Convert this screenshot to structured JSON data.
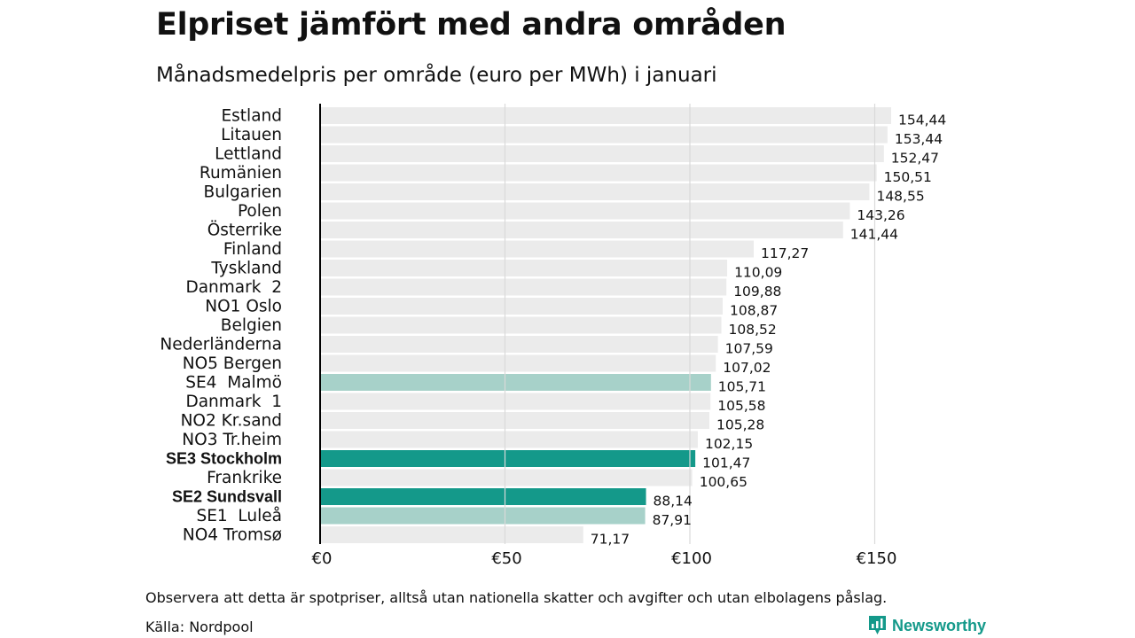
{
  "title": "Elpriset jämfört med andra områden",
  "subtitle": "Månadsmedelpris per område (euro per MWh) i januari",
  "colors": {
    "default": "#ebebeb",
    "highlight": "#14998a",
    "light_highlight": "#a7d1c9",
    "grid": "#d9d9d9",
    "axis": "#000000",
    "brand": "#14998a"
  },
  "chart_data": {
    "type": "bar",
    "orientation": "horizontal",
    "title": "Elpriset jämfört med andra områden",
    "subtitle": "Månadsmedelpris per område (euro per MWh) i januari",
    "xlabel": "",
    "ylabel": "",
    "xlim": [
      0,
      175
    ],
    "ticks": [
      0,
      50,
      100,
      150
    ],
    "tick_labels": [
      "€0",
      "€50",
      "€100",
      "€150"
    ],
    "grid": true,
    "categories": [
      "Estland",
      "Litauen",
      "Lettland",
      "Rumänien",
      "Bulgarien",
      "Polen",
      "Österrike",
      "Finland",
      "Tyskland",
      "Danmark  2",
      "NO1 Oslo",
      "Belgien",
      "Nederländerna",
      "NO5 Bergen",
      "SE4  Malmö",
      "Danmark  1",
      "NO2 Kr.sand",
      "NO3 Tr.heim",
      "SE3 Stockholm",
      "Frankrike",
      "SE2 Sundsvall",
      "SE1  Luleå",
      "NO4 Tromsø"
    ],
    "values": [
      154.44,
      153.44,
      152.47,
      150.51,
      148.55,
      143.26,
      141.44,
      117.27,
      110.09,
      109.88,
      108.87,
      108.52,
      107.59,
      107.02,
      105.71,
      105.58,
      105.28,
      102.15,
      101.47,
      100.65,
      88.14,
      87.91,
      71.17
    ],
    "value_labels": [
      "154,44",
      "153,44",
      "152,47",
      "150,51",
      "148,55",
      "143,26",
      "141,44",
      "117,27",
      "110,09",
      "109,88",
      "108,87",
      "108,52",
      "107,59",
      "107,02",
      "105,71",
      "105,58",
      "105,28",
      "102,15",
      "101,47",
      "100,65",
      "88,14",
      "87,91",
      "71,17"
    ],
    "highlight": [
      "none",
      "none",
      "none",
      "none",
      "none",
      "none",
      "none",
      "none",
      "none",
      "none",
      "none",
      "none",
      "none",
      "none",
      "light",
      "none",
      "none",
      "none",
      "strong",
      "none",
      "strong",
      "light",
      "none"
    ]
  },
  "footer": {
    "note": "Observera att detta är spotpriser, alltså utan nationella skatter och avgifter och utan elbolagens påslag.",
    "source": "Källa: Nordpool",
    "brand": "Newsworthy",
    "brand_icon": "newsworthy-logo-icon"
  }
}
